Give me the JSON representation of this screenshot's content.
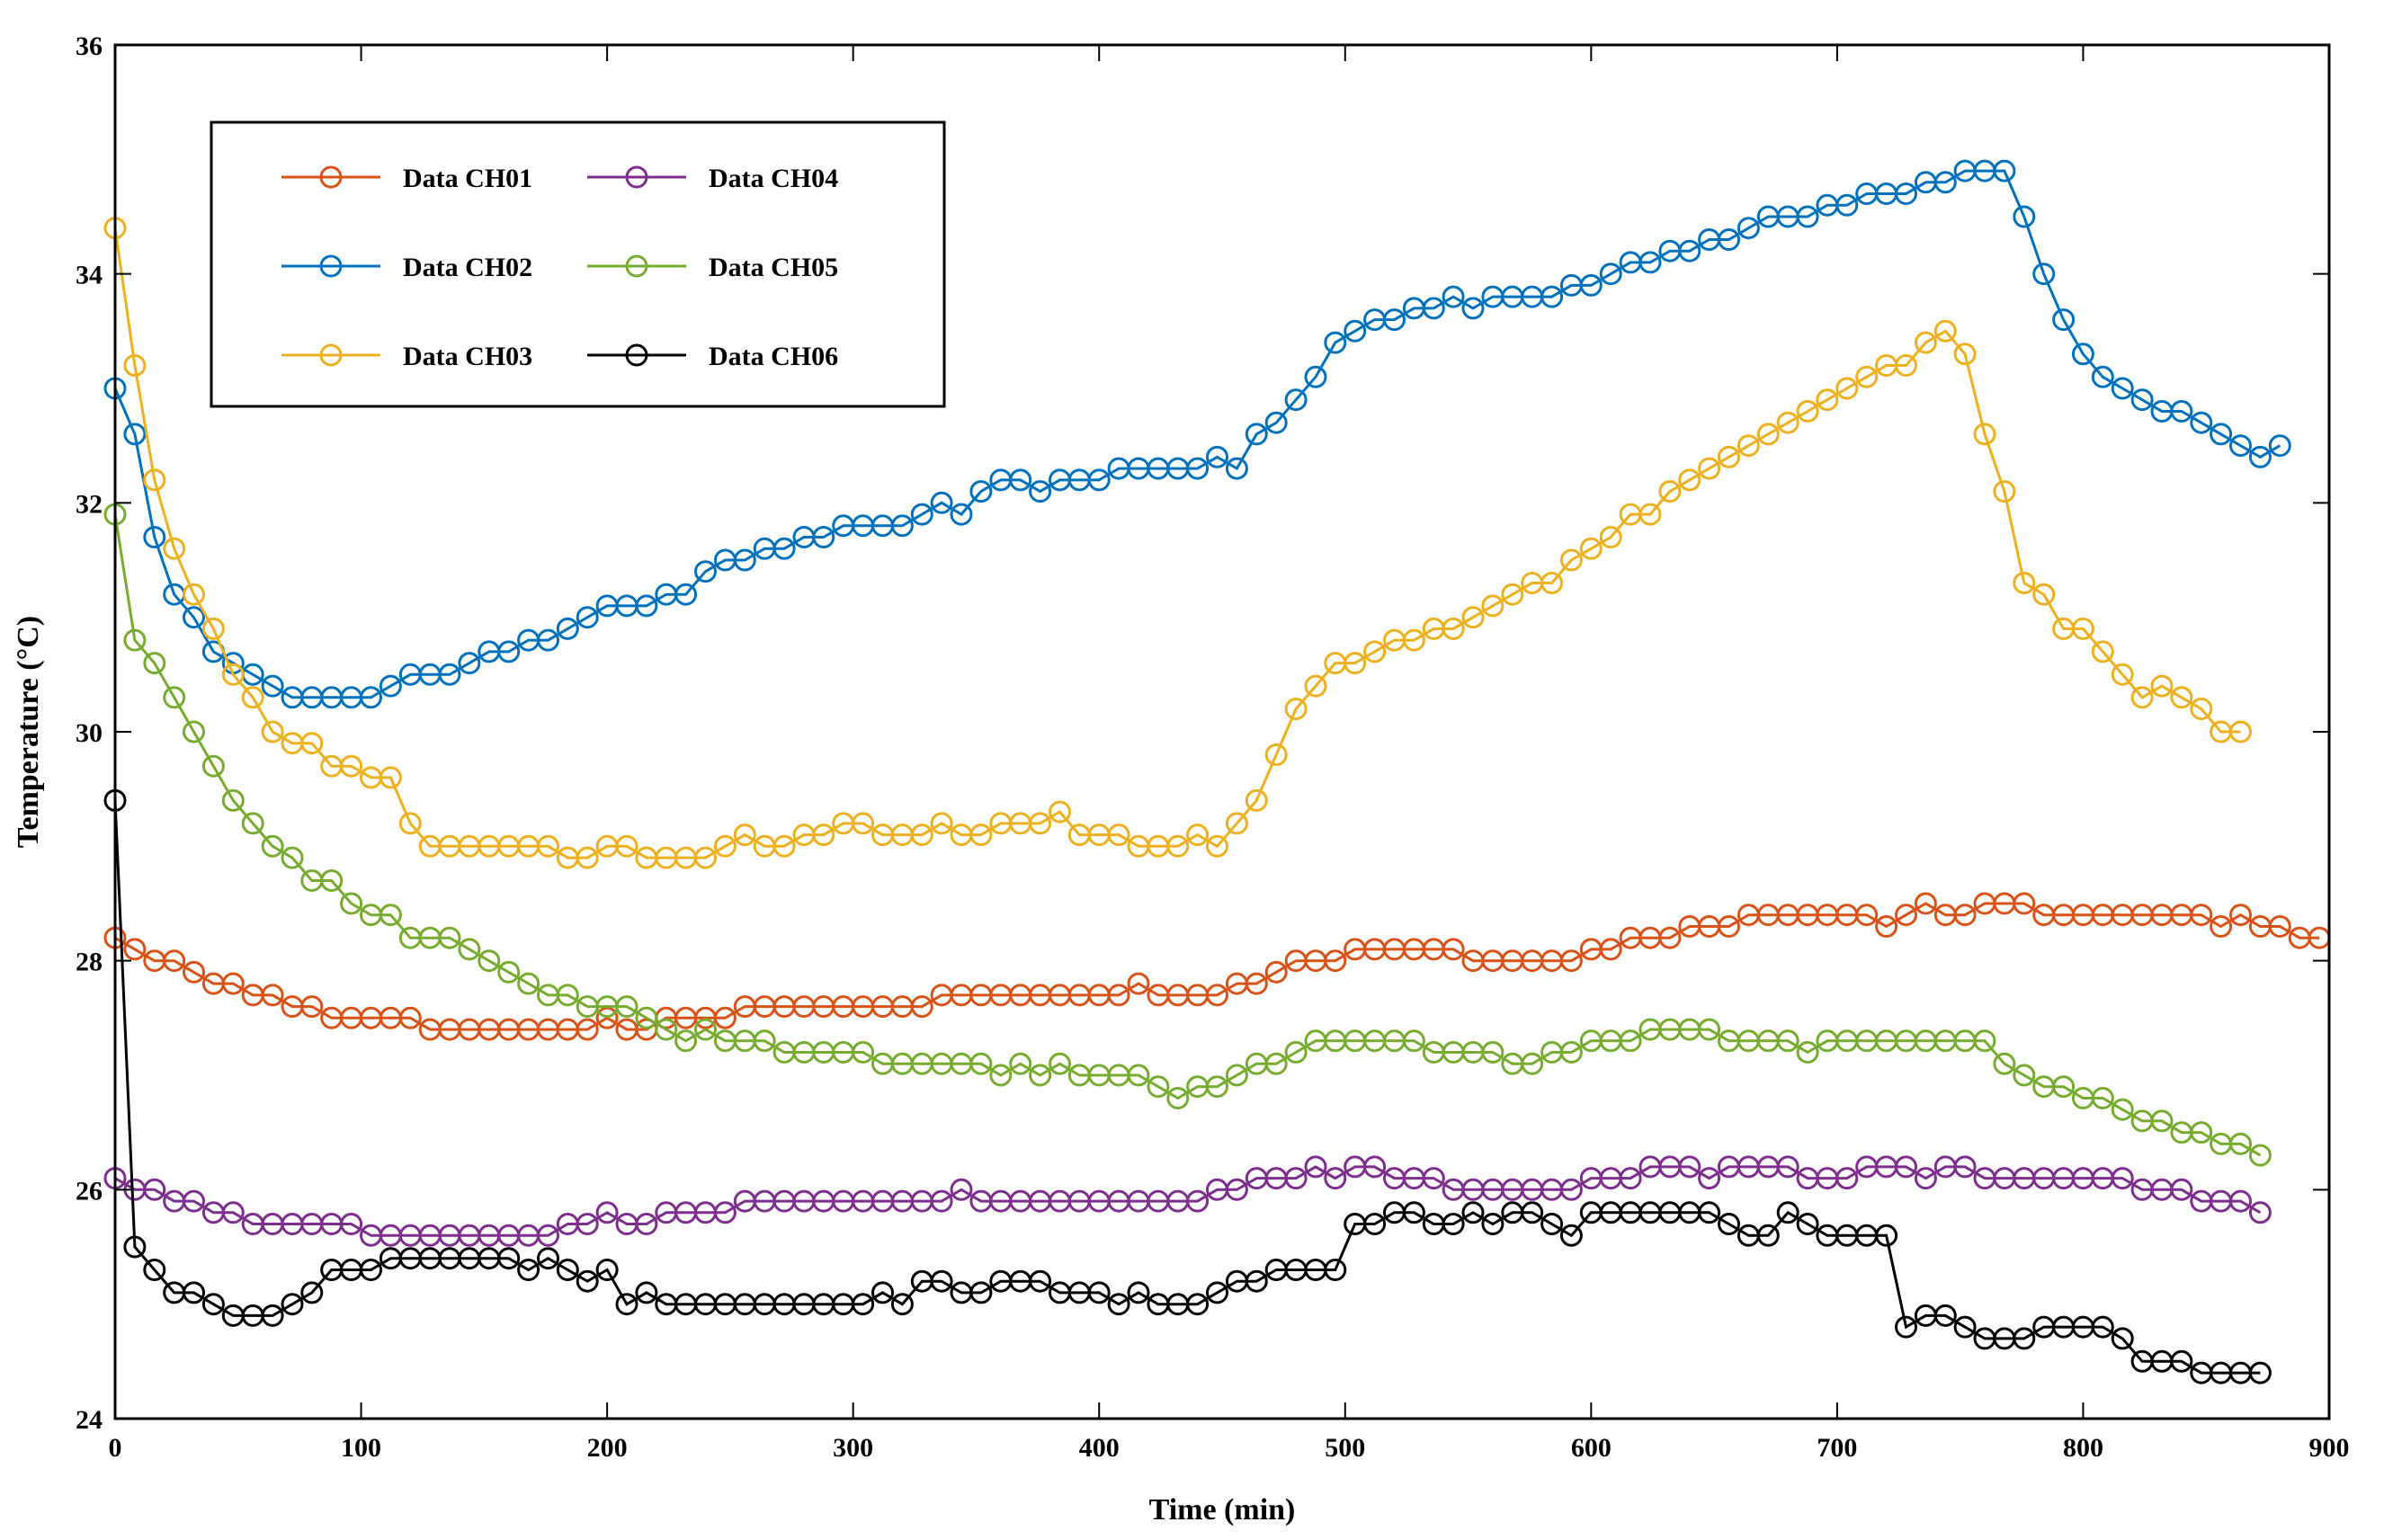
{
  "chart_data": {
    "type": "line",
    "title": "",
    "xlabel": "Time (min)",
    "ylabel": "Temperature (°C)",
    "xlim": [
      0,
      900
    ],
    "ylim": [
      24,
      36
    ],
    "xticks": [
      "0",
      "100",
      "200",
      "300",
      "400",
      "500",
      "600",
      "700",
      "800",
      "900"
    ],
    "yticks": [
      "24",
      "26",
      "28",
      "30",
      "32",
      "34",
      "36"
    ],
    "grid": false,
    "legend_position": "top-left",
    "marker": "circle",
    "sample_interval_min": 8,
    "series": [
      {
        "name": "Data CH01",
        "color": "#D95319",
        "values": [
          28.2,
          28.1,
          28.0,
          28.0,
          27.9,
          27.8,
          27.8,
          27.7,
          27.7,
          27.6,
          27.6,
          27.5,
          27.5,
          27.5,
          27.5,
          27.5,
          27.4,
          27.4,
          27.4,
          27.4,
          27.4,
          27.4,
          27.4,
          27.4,
          27.4,
          27.5,
          27.4,
          27.4,
          27.5,
          27.5,
          27.5,
          27.5,
          27.6,
          27.6,
          27.6,
          27.6,
          27.6,
          27.6,
          27.6,
          27.6,
          27.6,
          27.6,
          27.7,
          27.7,
          27.7,
          27.7,
          27.7,
          27.7,
          27.7,
          27.7,
          27.7,
          27.7,
          27.8,
          27.7,
          27.7,
          27.7,
          27.7,
          27.8,
          27.8,
          27.9,
          28.0,
          28.0,
          28.0,
          28.1,
          28.1,
          28.1,
          28.1,
          28.1,
          28.1,
          28.0,
          28.0,
          28.0,
          28.0,
          28.0,
          28.0,
          28.1,
          28.1,
          28.2,
          28.2,
          28.2,
          28.3,
          28.3,
          28.3,
          28.4,
          28.4,
          28.4,
          28.4,
          28.4,
          28.4,
          28.4,
          28.3,
          28.4,
          28.5,
          28.4,
          28.4,
          28.5,
          28.5,
          28.5,
          28.4,
          28.4,
          28.4,
          28.4,
          28.4,
          28.4,
          28.4,
          28.4,
          28.4,
          28.3,
          28.4,
          28.3,
          28.3,
          28.2,
          28.2
        ]
      },
      {
        "name": "Data CH02",
        "color": "#0072BD",
        "values": [
          33.0,
          32.6,
          31.7,
          31.2,
          31.0,
          30.7,
          30.6,
          30.5,
          30.4,
          30.3,
          30.3,
          30.3,
          30.3,
          30.3,
          30.4,
          30.5,
          30.5,
          30.5,
          30.6,
          30.7,
          30.7,
          30.8,
          30.8,
          30.9,
          31.0,
          31.1,
          31.1,
          31.1,
          31.2,
          31.2,
          31.4,
          31.5,
          31.5,
          31.6,
          31.6,
          31.7,
          31.7,
          31.8,
          31.8,
          31.8,
          31.8,
          31.9,
          32.0,
          31.9,
          32.1,
          32.2,
          32.2,
          32.1,
          32.2,
          32.2,
          32.2,
          32.3,
          32.3,
          32.3,
          32.3,
          32.3,
          32.4,
          32.3,
          32.6,
          32.7,
          32.9,
          33.1,
          33.4,
          33.5,
          33.6,
          33.6,
          33.7,
          33.7,
          33.8,
          33.7,
          33.8,
          33.8,
          33.8,
          33.8,
          33.9,
          33.9,
          34.0,
          34.1,
          34.1,
          34.2,
          34.2,
          34.3,
          34.3,
          34.4,
          34.5,
          34.5,
          34.5,
          34.6,
          34.6,
          34.7,
          34.7,
          34.7,
          34.8,
          34.8,
          34.9,
          34.9,
          34.9,
          34.5,
          34.0,
          33.6,
          33.3,
          33.1,
          33.0,
          32.9,
          32.8,
          32.8,
          32.7,
          32.6,
          32.5,
          32.4,
          32.5
        ]
      },
      {
        "name": "Data CH03",
        "color": "#EDB120",
        "values": [
          34.4,
          33.2,
          32.2,
          31.6,
          31.2,
          30.9,
          30.5,
          30.3,
          30.0,
          29.9,
          29.9,
          29.7,
          29.7,
          29.6,
          29.6,
          29.2,
          29.0,
          29.0,
          29.0,
          29.0,
          29.0,
          29.0,
          29.0,
          28.9,
          28.9,
          29.0,
          29.0,
          28.9,
          28.9,
          28.9,
          28.9,
          29.0,
          29.1,
          29.0,
          29.0,
          29.1,
          29.1,
          29.2,
          29.2,
          29.1,
          29.1,
          29.1,
          29.2,
          29.1,
          29.1,
          29.2,
          29.2,
          29.2,
          29.3,
          29.1,
          29.1,
          29.1,
          29.0,
          29.0,
          29.0,
          29.1,
          29.0,
          29.2,
          29.4,
          29.8,
          30.2,
          30.4,
          30.6,
          30.6,
          30.7,
          30.8,
          30.8,
          30.9,
          30.9,
          31.0,
          31.1,
          31.2,
          31.3,
          31.3,
          31.5,
          31.6,
          31.7,
          31.9,
          31.9,
          32.1,
          32.2,
          32.3,
          32.4,
          32.5,
          32.6,
          32.7,
          32.8,
          32.9,
          33.0,
          33.1,
          33.2,
          33.2,
          33.4,
          33.5,
          33.3,
          32.6,
          32.1,
          31.3,
          31.2,
          30.9,
          30.9,
          30.7,
          30.5,
          30.3,
          30.4,
          30.3,
          30.2,
          30.0,
          30.0
        ]
      },
      {
        "name": "Data CH04",
        "color": "#7E2F8E",
        "values": [
          26.1,
          26.0,
          26.0,
          25.9,
          25.9,
          25.8,
          25.8,
          25.7,
          25.7,
          25.7,
          25.7,
          25.7,
          25.7,
          25.6,
          25.6,
          25.6,
          25.6,
          25.6,
          25.6,
          25.6,
          25.6,
          25.6,
          25.6,
          25.7,
          25.7,
          25.8,
          25.7,
          25.7,
          25.8,
          25.8,
          25.8,
          25.8,
          25.9,
          25.9,
          25.9,
          25.9,
          25.9,
          25.9,
          25.9,
          25.9,
          25.9,
          25.9,
          25.9,
          26.0,
          25.9,
          25.9,
          25.9,
          25.9,
          25.9,
          25.9,
          25.9,
          25.9,
          25.9,
          25.9,
          25.9,
          25.9,
          26.0,
          26.0,
          26.1,
          26.1,
          26.1,
          26.2,
          26.1,
          26.2,
          26.2,
          26.1,
          26.1,
          26.1,
          26.0,
          26.0,
          26.0,
          26.0,
          26.0,
          26.0,
          26.0,
          26.1,
          26.1,
          26.1,
          26.2,
          26.2,
          26.2,
          26.1,
          26.2,
          26.2,
          26.2,
          26.2,
          26.1,
          26.1,
          26.1,
          26.2,
          26.2,
          26.2,
          26.1,
          26.2,
          26.2,
          26.1,
          26.1,
          26.1,
          26.1,
          26.1,
          26.1,
          26.1,
          26.1,
          26.0,
          26.0,
          26.0,
          25.9,
          25.9,
          25.9,
          25.8
        ]
      },
      {
        "name": "Data CH05",
        "color": "#77AC30",
        "values": [
          31.9,
          30.8,
          30.6,
          30.3,
          30.0,
          29.7,
          29.4,
          29.2,
          29.0,
          28.9,
          28.7,
          28.7,
          28.5,
          28.4,
          28.4,
          28.2,
          28.2,
          28.2,
          28.1,
          28.0,
          27.9,
          27.8,
          27.7,
          27.7,
          27.6,
          27.6,
          27.6,
          27.5,
          27.4,
          27.3,
          27.4,
          27.3,
          27.3,
          27.3,
          27.2,
          27.2,
          27.2,
          27.2,
          27.2,
          27.1,
          27.1,
          27.1,
          27.1,
          27.1,
          27.1,
          27.0,
          27.1,
          27.0,
          27.1,
          27.0,
          27.0,
          27.0,
          27.0,
          26.9,
          26.8,
          26.9,
          26.9,
          27.0,
          27.1,
          27.1,
          27.2,
          27.3,
          27.3,
          27.3,
          27.3,
          27.3,
          27.3,
          27.2,
          27.2,
          27.2,
          27.2,
          27.1,
          27.1,
          27.2,
          27.2,
          27.3,
          27.3,
          27.3,
          27.4,
          27.4,
          27.4,
          27.4,
          27.3,
          27.3,
          27.3,
          27.3,
          27.2,
          27.3,
          27.3,
          27.3,
          27.3,
          27.3,
          27.3,
          27.3,
          27.3,
          27.3,
          27.1,
          27.0,
          26.9,
          26.9,
          26.8,
          26.8,
          26.7,
          26.6,
          26.6,
          26.5,
          26.5,
          26.4,
          26.4,
          26.3
        ]
      },
      {
        "name": "Data CH06",
        "color": "#000000",
        "values": [
          29.4,
          25.5,
          25.3,
          25.1,
          25.1,
          25.0,
          24.9,
          24.9,
          24.9,
          25.0,
          25.1,
          25.3,
          25.3,
          25.3,
          25.4,
          25.4,
          25.4,
          25.4,
          25.4,
          25.4,
          25.4,
          25.3,
          25.4,
          25.3,
          25.2,
          25.3,
          25.0,
          25.1,
          25.0,
          25.0,
          25.0,
          25.0,
          25.0,
          25.0,
          25.0,
          25.0,
          25.0,
          25.0,
          25.0,
          25.1,
          25.0,
          25.2,
          25.2,
          25.1,
          25.1,
          25.2,
          25.2,
          25.2,
          25.1,
          25.1,
          25.1,
          25.0,
          25.1,
          25.0,
          25.0,
          25.0,
          25.1,
          25.2,
          25.2,
          25.3,
          25.3,
          25.3,
          25.3,
          25.7,
          25.7,
          25.8,
          25.8,
          25.7,
          25.7,
          25.8,
          25.7,
          25.8,
          25.8,
          25.7,
          25.6,
          25.8,
          25.8,
          25.8,
          25.8,
          25.8,
          25.8,
          25.8,
          25.7,
          25.6,
          25.6,
          25.8,
          25.7,
          25.6,
          25.6,
          25.6,
          25.6,
          24.8,
          24.9,
          24.9,
          24.8,
          24.7,
          24.7,
          24.7,
          24.8,
          24.8,
          24.8,
          24.8,
          24.7,
          24.5,
          24.5,
          24.5,
          24.4,
          24.4,
          24.4,
          24.4
        ]
      }
    ]
  }
}
